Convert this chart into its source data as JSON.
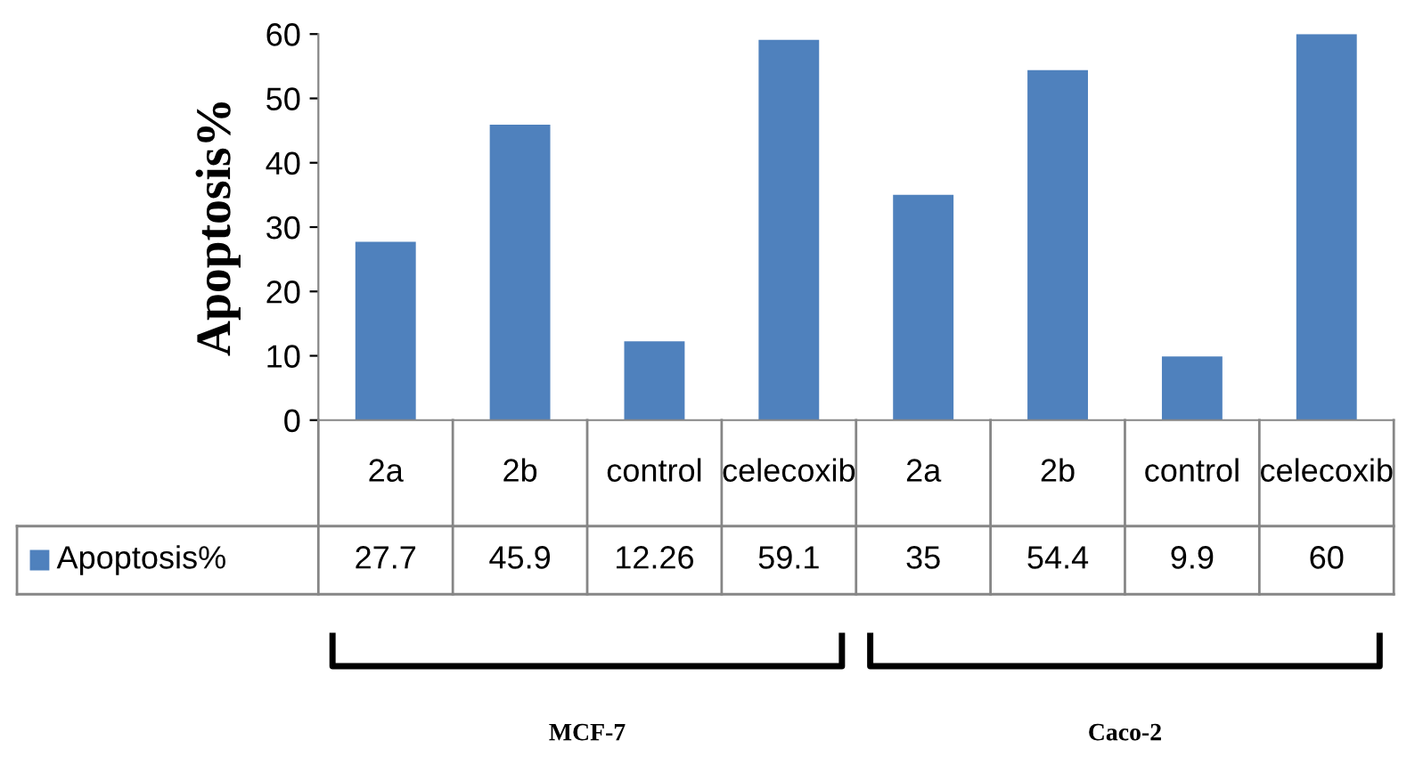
{
  "chart_data": {
    "type": "bar",
    "ylabel": "Apoptosis%",
    "categories": [
      "2a",
      "2b",
      "control",
      "celecoxib",
      "2a",
      "2b",
      "control",
      "celecoxib"
    ],
    "series": [
      {
        "name": "Apoptosis%",
        "color": "#4f81bd",
        "values": [
          27.7,
          45.9,
          12.26,
          59.1,
          35,
          54.4,
          9.9,
          60
        ]
      }
    ],
    "ylim": [
      0,
      60
    ],
    "yticks": [
      0,
      10,
      20,
      30,
      40,
      50,
      60
    ],
    "grid": false,
    "data_labels": true,
    "legend": "bottom",
    "annotations": [
      "MCF-7",
      "Caco-2"
    ]
  }
}
